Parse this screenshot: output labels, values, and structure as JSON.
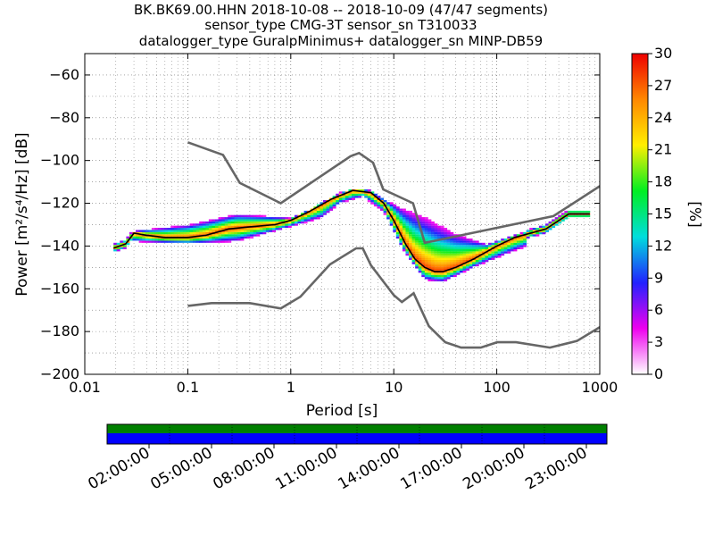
{
  "chart_data": [
    {
      "type": "heatmap",
      "title_lines": [
        "BK.BK69.00.HHN   2018-10-08 -- 2018-10-09  (47/47 segments)",
        "sensor_type CMG-3T sensor_sn T310033",
        "datalogger_type GuralpMinimus+ datalogger_sn MINP-DB59"
      ],
      "xlabel": "Period [s]",
      "ylabel": "Power [m²/s⁴/Hz] [dB]",
      "x_scale": "log",
      "xlim": [
        0.01,
        1000
      ],
      "ylim": [
        -200,
        -50
      ],
      "x_ticks": [
        0.01,
        0.1,
        1,
        10,
        100,
        1000
      ],
      "x_tick_labels": [
        "0.01",
        "0.1",
        "1",
        "10",
        "100",
        "1000"
      ],
      "y_ticks": [
        -200,
        -180,
        -160,
        -140,
        -120,
        -100,
        -80,
        -60
      ],
      "y_tick_labels": [
        "−200",
        "−180",
        "−160",
        "−140",
        "−120",
        "−100",
        "−80",
        "−60"
      ],
      "grid": "dotted",
      "colorbar": {
        "label": "[%]",
        "range": [
          0,
          30
        ],
        "ticks": [
          0,
          3,
          6,
          9,
          12,
          15,
          18,
          21,
          24,
          27,
          30
        ],
        "tick_labels": [
          "0",
          "3",
          "6",
          "9",
          "12",
          "15",
          "18",
          "21",
          "24",
          "27",
          "30"
        ],
        "colormap": [
          "#ffffff",
          "#ee00ee",
          "#2222ff",
          "#00dddd",
          "#00ee22",
          "#ffee00",
          "#ff8800",
          "#ee0000"
        ]
      },
      "mode_curve": [
        [
          0.019,
          -141
        ],
        [
          0.025,
          -139
        ],
        [
          0.03,
          -134
        ],
        [
          0.04,
          -135
        ],
        [
          0.06,
          -136
        ],
        [
          0.1,
          -136
        ],
        [
          0.15,
          -135
        ],
        [
          0.25,
          -132
        ],
        [
          0.4,
          -131
        ],
        [
          0.7,
          -130
        ],
        [
          1.0,
          -128
        ],
        [
          1.5,
          -124
        ],
        [
          2.5,
          -118
        ],
        [
          4.0,
          -114
        ],
        [
          6.0,
          -115
        ],
        [
          8.0,
          -120
        ],
        [
          10.0,
          -128
        ],
        [
          13.0,
          -139
        ],
        [
          16.0,
          -146
        ],
        [
          20.0,
          -150
        ],
        [
          25.0,
          -152
        ],
        [
          30.0,
          -152
        ],
        [
          40.0,
          -150
        ],
        [
          60.0,
          -146
        ],
        [
          100.0,
          -140
        ],
        [
          150.0,
          -136
        ],
        [
          300.0,
          -132
        ],
        [
          500.0,
          -125
        ],
        [
          800.0,
          -125
        ]
      ],
      "spread_curves": [
        [
          [
            0.03,
            -133
          ],
          [
            0.1,
            -130
          ],
          [
            0.3,
            -125
          ],
          [
            0.6,
            -126
          ],
          [
            1.0,
            -127
          ],
          [
            2.0,
            -121
          ],
          [
            3.0,
            -115
          ],
          [
            5.0,
            -113
          ],
          [
            8.0,
            -118
          ],
          [
            12.0,
            -122
          ],
          [
            20.0,
            -126
          ],
          [
            40.0,
            -134
          ],
          [
            80.0,
            -139
          ],
          [
            200.0,
            -133
          ]
        ],
        [
          [
            0.03,
            -138
          ],
          [
            0.1,
            -139
          ],
          [
            0.3,
            -138
          ],
          [
            0.6,
            -134
          ],
          [
            1.0,
            -131
          ],
          [
            2.0,
            -127
          ],
          [
            3.0,
            -120
          ],
          [
            5.0,
            -117
          ],
          [
            8.0,
            -124
          ],
          [
            12.0,
            -141
          ],
          [
            20.0,
            -156
          ],
          [
            30.0,
            -157
          ],
          [
            60.0,
            -150
          ],
          [
            200.0,
            -140
          ]
        ]
      ],
      "nhnm": [
        [
          0.1,
          -91.5
        ],
        [
          0.22,
          -97.4
        ],
        [
          0.32,
          -110.5
        ],
        [
          0.8,
          -120
        ],
        [
          3.8,
          -98
        ],
        [
          4.6,
          -96.5
        ],
        [
          6.3,
          -101
        ],
        [
          7.9,
          -113.5
        ],
        [
          15.4,
          -120
        ],
        [
          20.0,
          -138.5
        ],
        [
          354.8,
          -126
        ],
        [
          1000.0,
          -112
        ]
      ],
      "nlnm": [
        [
          0.1,
          -168
        ],
        [
          0.17,
          -166.7
        ],
        [
          0.4,
          -166.7
        ],
        [
          0.8,
          -169.2
        ],
        [
          1.24,
          -163.7
        ],
        [
          2.4,
          -148.6
        ],
        [
          4.3,
          -141.1
        ],
        [
          5.0,
          -141.1
        ],
        [
          6.0,
          -149
        ],
        [
          10.0,
          -163
        ],
        [
          12.0,
          -166.2
        ],
        [
          15.6,
          -162.1
        ],
        [
          21.9,
          -177.5
        ],
        [
          31.6,
          -185
        ],
        [
          45.0,
          -187.5
        ],
        [
          70.0,
          -187.5
        ],
        [
          101.0,
          -185
        ],
        [
          154.0,
          -185
        ],
        [
          328.0,
          -187.5
        ],
        [
          600.0,
          -184.4
        ],
        [
          1000.0,
          -178
        ]
      ]
    },
    {
      "type": "timeline",
      "bands": [
        "#008000",
        "#0000ff"
      ],
      "time_tick_labels": [
        "02:00:00",
        "05:00:00",
        "08:00:00",
        "11:00:00",
        "14:00:00",
        "17:00:00",
        "20:00:00",
        "23:00:00"
      ]
    }
  ]
}
